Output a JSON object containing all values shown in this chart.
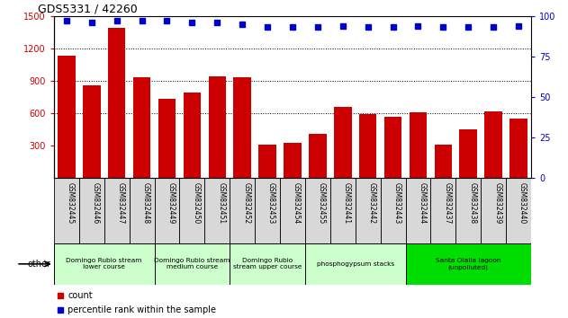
{
  "title": "GDS5331 / 42260",
  "samples": [
    "GSM832445",
    "GSM832446",
    "GSM832447",
    "GSM832448",
    "GSM832449",
    "GSM832450",
    "GSM832451",
    "GSM832452",
    "GSM832453",
    "GSM832454",
    "GSM832455",
    "GSM832441",
    "GSM832442",
    "GSM832443",
    "GSM832444",
    "GSM832437",
    "GSM832438",
    "GSM832439",
    "GSM832440"
  ],
  "counts": [
    1130,
    860,
    1390,
    930,
    730,
    790,
    940,
    930,
    310,
    330,
    410,
    660,
    590,
    570,
    605,
    310,
    450,
    615,
    550
  ],
  "percentiles": [
    97,
    96,
    97,
    97,
    97,
    96,
    96,
    95,
    93,
    93,
    93,
    94,
    93,
    93,
    94,
    93,
    93,
    93,
    94
  ],
  "ylim_left": [
    0,
    1500
  ],
  "ylim_right": [
    0,
    100
  ],
  "yticks_left": [
    300,
    600,
    900,
    1200,
    1500
  ],
  "yticks_right": [
    0,
    25,
    50,
    75,
    100
  ],
  "bar_color": "#cc0000",
  "dot_color": "#0000cc",
  "background_color": "#ffffff",
  "groups": [
    {
      "label": "Domingo Rubio stream\nlower course",
      "start": 0,
      "end": 3,
      "color": "#ccffcc"
    },
    {
      "label": "Domingo Rubio stream\nmedium course",
      "start": 4,
      "end": 6,
      "color": "#ccffcc"
    },
    {
      "label": "Domingo Rubio\nstream upper course",
      "start": 7,
      "end": 9,
      "color": "#ccffcc"
    },
    {
      "label": "phosphogypsum stacks",
      "start": 10,
      "end": 13,
      "color": "#ccffcc"
    },
    {
      "label": "Santa Olalla lagoon\n(unpolluted)",
      "start": 14,
      "end": 18,
      "color": "#00dd00"
    }
  ],
  "legend_count_color": "#cc0000",
  "legend_pct_color": "#0000cc"
}
